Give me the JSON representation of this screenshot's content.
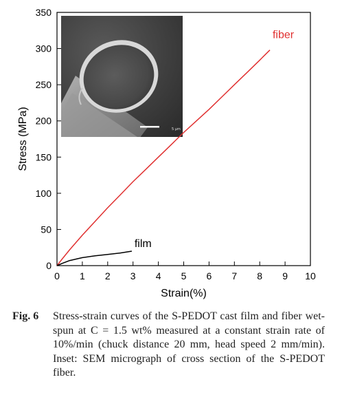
{
  "chart_data": {
    "type": "line",
    "xlabel": "Strain(%)",
    "ylabel": "Stress (MPa)",
    "xlim": [
      0,
      10
    ],
    "ylim": [
      0,
      350
    ],
    "x_ticks": [
      "0",
      "1",
      "2",
      "3",
      "4",
      "5",
      "6",
      "7",
      "8",
      "9",
      "10"
    ],
    "y_ticks": [
      "0",
      "50",
      "100",
      "150",
      "200",
      "250",
      "300",
      "350"
    ],
    "grid": false,
    "series": [
      {
        "name": "fiber",
        "color": "#e03030",
        "x": [
          0,
          0.2,
          0.5,
          1.0,
          1.5,
          2.0,
          2.5,
          3.0,
          3.5,
          4.0,
          4.5,
          5.0,
          5.5,
          6.0,
          6.5,
          7.0,
          7.5,
          8.0,
          8.4
        ],
        "y": [
          0,
          9,
          22,
          42,
          61,
          80,
          98,
          116,
          133,
          150,
          167,
          184,
          200,
          216,
          233,
          250,
          267,
          284,
          298
        ]
      },
      {
        "name": "film",
        "color": "#000000",
        "x": [
          0,
          0.2,
          0.5,
          1.0,
          1.5,
          2.0,
          2.5,
          2.95
        ],
        "y": [
          0,
          3,
          7,
          11,
          13.5,
          15.5,
          17.5,
          20
        ]
      }
    ],
    "inset": {
      "type": "SEM micrograph",
      "scale_bar_label": "5 μm",
      "icon": "sem-micrograph"
    }
  },
  "caption": {
    "label": "Fig. 6",
    "text": "Stress-strain curves of the S-PEDOT cast film and fiber wet-spun at C = 1.5 wt% measured at a constant strain rate of 10%/min (chuck distance 20 mm, head speed 2 mm/min). Inset: SEM micrograph of cross section of the S-PEDOT fiber."
  }
}
